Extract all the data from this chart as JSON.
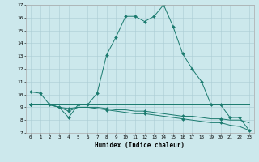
{
  "title": "",
  "xlabel": "Humidex (Indice chaleur)",
  "ylabel": "",
  "xlim": [
    -0.5,
    23.5
  ],
  "ylim": [
    7,
    17
  ],
  "yticks": [
    7,
    8,
    9,
    10,
    11,
    12,
    13,
    14,
    15,
    16,
    17
  ],
  "xticks": [
    0,
    1,
    2,
    3,
    4,
    5,
    6,
    7,
    8,
    9,
    10,
    11,
    12,
    13,
    14,
    15,
    16,
    17,
    18,
    19,
    20,
    21,
    22,
    23
  ],
  "bg_color": "#cce8ec",
  "grid_color": "#aaccd4",
  "line_color": "#1a7a6e",
  "series": [
    [
      10.2,
      10.1,
      9.2,
      9.0,
      8.2,
      9.2,
      9.2,
      10.1,
      13.1,
      14.5,
      16.1,
      16.1,
      15.7,
      16.1,
      17.0,
      15.3,
      13.2,
      12.0,
      11.0,
      9.2,
      9.2,
      8.2,
      8.2,
      7.2
    ],
    [
      9.2,
      9.2,
      9.2,
      9.0,
      8.7,
      9.0,
      9.0,
      9.0,
      8.9,
      8.8,
      8.8,
      8.7,
      8.7,
      8.6,
      8.5,
      8.4,
      8.3,
      8.3,
      8.2,
      8.1,
      8.1,
      8.0,
      8.0,
      7.8
    ],
    [
      9.2,
      9.2,
      9.2,
      9.2,
      9.2,
      9.2,
      9.2,
      9.2,
      9.2,
      9.2,
      9.2,
      9.2,
      9.2,
      9.2,
      9.2,
      9.2,
      9.2,
      9.2,
      9.2,
      9.2,
      9.2,
      9.2,
      9.2,
      9.2
    ],
    [
      9.2,
      9.2,
      9.2,
      9.0,
      8.9,
      9.0,
      9.0,
      8.9,
      8.8,
      8.7,
      8.6,
      8.5,
      8.5,
      8.4,
      8.3,
      8.2,
      8.1,
      8.0,
      7.9,
      7.8,
      7.8,
      7.6,
      7.5,
      7.2
    ]
  ],
  "marker_every": [
    1,
    4,
    100,
    4
  ]
}
